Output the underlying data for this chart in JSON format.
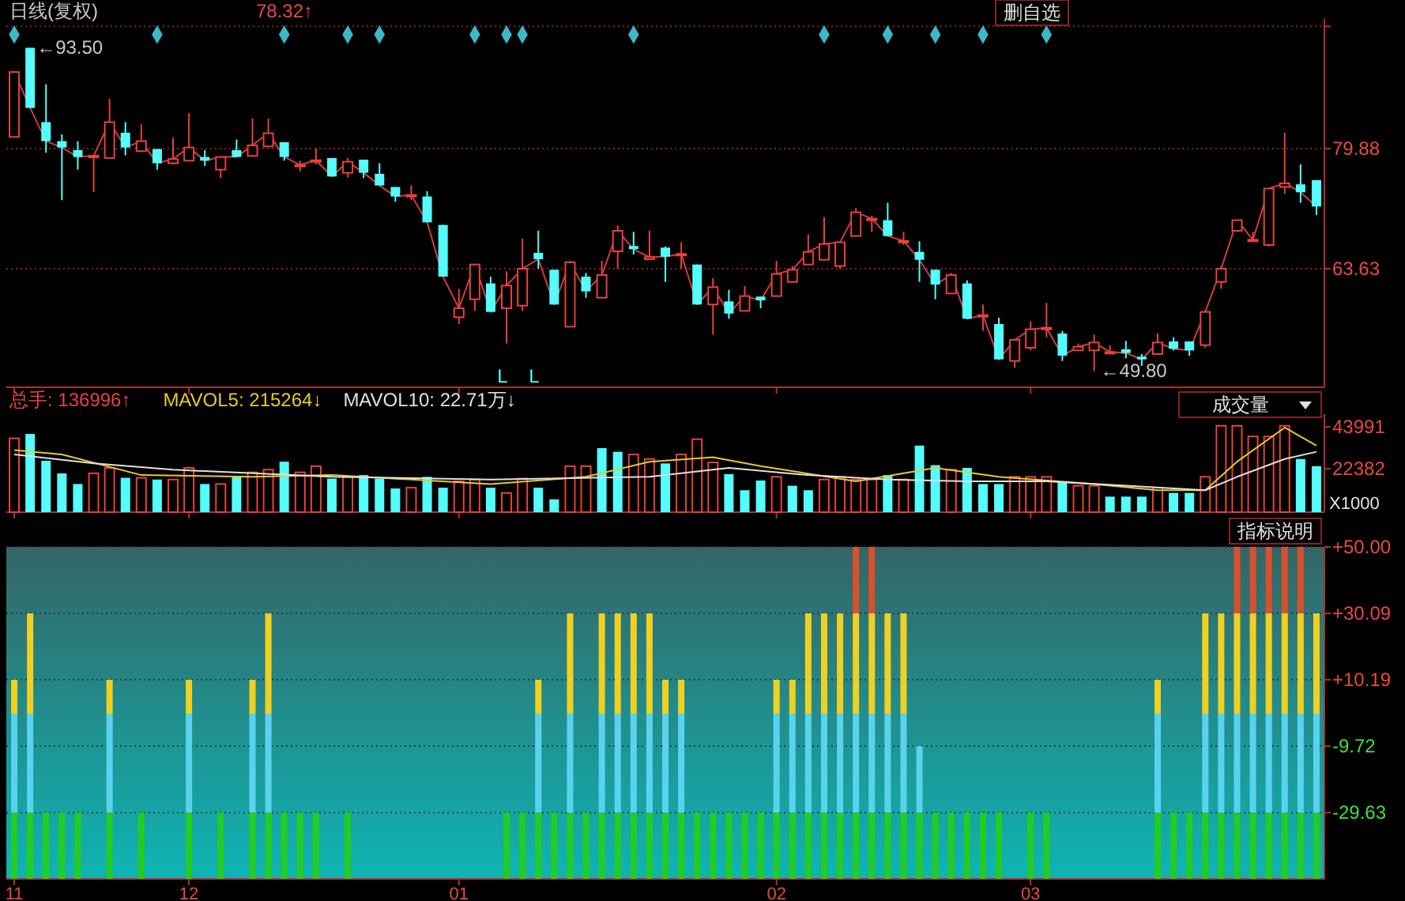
{
  "chart_data": [
    {
      "type": "candlestick",
      "title": "日线(复权)",
      "ylim": [
        47.6,
        97.4
      ],
      "yticks": [
        {
          "value": 96.4,
          "label": null
        },
        79.88,
        63.63
      ],
      "grid": "y",
      "tick_labels": "y",
      "categories": [
        "11",
        null,
        null,
        null,
        null,
        null,
        null,
        null,
        null,
        null,
        null,
        "12",
        null,
        null,
        null,
        null,
        null,
        null,
        null,
        null,
        null,
        null,
        null,
        null,
        null,
        null,
        null,
        null,
        "01",
        null,
        null,
        null,
        null,
        null,
        null,
        null,
        null,
        null,
        null,
        null,
        null,
        null,
        null,
        null,
        null,
        null,
        null,
        null,
        "02",
        null,
        null,
        null,
        null,
        null,
        null,
        null,
        null,
        null,
        null,
        null,
        null,
        null,
        null,
        null,
        "03",
        null,
        null,
        null,
        null,
        null,
        null,
        null,
        null,
        null,
        null,
        null,
        null,
        null,
        null,
        null,
        null,
        null,
        null
      ],
      "ohlc": [
        [
          81.45,
          90.22,
          81.45,
          90.22
        ],
        [
          93.5,
          93.5,
          85.37,
          85.37
        ],
        [
          83.45,
          88.58,
          79.31,
          80.88
        ],
        [
          80.88,
          81.8,
          72.9,
          80.02
        ],
        [
          79.67,
          80.88,
          77.03,
          78.74
        ],
        [
          78.8,
          79.0,
          74.0,
          78.9
        ],
        [
          78.6,
          86.58,
          78.6,
          83.45
        ],
        [
          82.02,
          83.45,
          78.96,
          80.02
        ],
        [
          79.53,
          83.16,
          79.53,
          80.88
        ],
        [
          79.81,
          79.81,
          77.03,
          77.89
        ],
        [
          77.89,
          81.31,
          77.74,
          78.46
        ],
        [
          78.24,
          84.66,
          78.24,
          80.02
        ],
        [
          78.74,
          79.67,
          77.53,
          78.24
        ],
        [
          77.03,
          78.74,
          75.89,
          78.74
        ],
        [
          79.67,
          81.1,
          78.74,
          78.74
        ],
        [
          78.88,
          83.94,
          78.88,
          80.31
        ],
        [
          80.17,
          83.94,
          80.17,
          81.95
        ],
        [
          80.74,
          80.74,
          78.24,
          78.74
        ],
        [
          77.67,
          78.24,
          76.82,
          77.67
        ],
        [
          78.24,
          79.88,
          77.74,
          78.3
        ],
        [
          78.6,
          78.6,
          76.1,
          76.1
        ],
        [
          76.6,
          78.6,
          75.96,
          78.1
        ],
        [
          78.38,
          78.38,
          75.89,
          76.6
        ],
        [
          76.46,
          77.89,
          74.89,
          74.89
        ],
        [
          74.68,
          74.68,
          72.68,
          73.4
        ],
        [
          73.6,
          74.89,
          72.9,
          73.6
        ],
        [
          73.4,
          74.11,
          69.9,
          69.9
        ],
        [
          69.55,
          69.55,
          62.56,
          62.56
        ],
        [
          57.07,
          60.92,
          56.15,
          58.29
        ],
        [
          59.5,
          64.2,
          57.93,
          64.2
        ],
        [
          61.64,
          62.56,
          57.79,
          57.79
        ],
        [
          58.29,
          63.28,
          53.51,
          61.35
        ],
        [
          58.64,
          67.69,
          57.93,
          63.63
        ],
        [
          65.77,
          68.76,
          63.63,
          64.92
        ],
        [
          63.49,
          63.49,
          58.79,
          58.79
        ],
        [
          55.79,
          64.7,
          55.79,
          64.49
        ],
        [
          62.56,
          63.06,
          59.71,
          60.57
        ],
        [
          59.71,
          64.7,
          59.71,
          62.78
        ],
        [
          65.98,
          69.48,
          63.63,
          68.76
        ],
        [
          66.7,
          68.62,
          65.56,
          66.27
        ],
        [
          64.92,
          68.76,
          64.92,
          65.2
        ],
        [
          66.48,
          66.63,
          61.85,
          65.27
        ],
        [
          65.63,
          67.2,
          63.63,
          65.63
        ],
        [
          64.2,
          64.2,
          58.79,
          58.79
        ],
        [
          58.79,
          62.35,
          54.72,
          61.14
        ],
        [
          59.21,
          60.78,
          56.86,
          57.57
        ],
        [
          57.93,
          61.28,
          57.93,
          59.93
        ],
        [
          59.86,
          59.86,
          58.29,
          59.36
        ],
        [
          59.93,
          64.7,
          59.93,
          62.92
        ],
        [
          61.85,
          64.0,
          61.85,
          63.49
        ],
        [
          64.2,
          68.27,
          64.2,
          65.91
        ],
        [
          64.84,
          70.62,
          64.84,
          66.98
        ],
        [
          63.99,
          67.2,
          63.63,
          67.2
        ],
        [
          68.05,
          71.83,
          68.05,
          71.26
        ],
        [
          70.4,
          70.76,
          68.62,
          70.4
        ],
        [
          70.19,
          72.54,
          68.05,
          68.05
        ],
        [
          67.4,
          68.62,
          66.84,
          67.4
        ],
        [
          65.91,
          67.34,
          61.85,
          64.84
        ],
        [
          63.49,
          63.49,
          59.5,
          61.49
        ],
        [
          60.28,
          63.06,
          60.28,
          62.78
        ],
        [
          61.64,
          62.06,
          56.86,
          56.86
        ],
        [
          57.36,
          58.79,
          55.22,
          57.36
        ],
        [
          56.15,
          57.0,
          51.37,
          51.37
        ],
        [
          51.16,
          54.01,
          50.23,
          54.01
        ],
        [
          52.94,
          56.5,
          52.59,
          55.44
        ],
        [
          55.44,
          59.0,
          54.37,
          55.65
        ],
        [
          54.87,
          55.22,
          51.16,
          51.87
        ],
        [
          52.59,
          53.51,
          52.59,
          53.08
        ],
        [
          52.59,
          54.72,
          49.8,
          53.65
        ],
        [
          52.37,
          53.3,
          52.09,
          52.37
        ],
        [
          52.73,
          53.87,
          51.52,
          52.23
        ],
        [
          51.73,
          52.09,
          50.5,
          51.37
        ],
        [
          52.09,
          54.87,
          52.09,
          53.65
        ],
        [
          53.8,
          54.37,
          52.59,
          52.8
        ],
        [
          53.8,
          53.8,
          51.87,
          52.59
        ],
        [
          53.3,
          57.79,
          52.94,
          57.79
        ],
        [
          61.85,
          63.99,
          60.92,
          63.63
        ],
        [
          68.76,
          70.19,
          68.62,
          70.19
        ],
        [
          67.55,
          68.62,
          67.34,
          67.55
        ],
        [
          66.84,
          74.47,
          66.63,
          74.47
        ],
        [
          74.68,
          82.02,
          73.75,
          75.18
        ],
        [
          75.04,
          77.74,
          72.54,
          73.97
        ],
        [
          75.61,
          75.61,
          70.9,
          72.04
        ]
      ],
      "series": [
        {
          "type": "line",
          "color": "#d23c3c",
          "values": [
            90.22,
            85.37,
            80.88,
            80.02,
            78.74,
            78.9,
            83.45,
            80.02,
            80.88,
            77.89,
            78.46,
            80.02,
            78.24,
            78.74,
            78.74,
            80.31,
            81.95,
            78.74,
            77.67,
            78.3,
            76.1,
            78.1,
            76.6,
            74.89,
            73.4,
            73.6,
            69.9,
            62.56,
            58.29,
            64.2,
            57.79,
            61.35,
            63.63,
            64.92,
            58.79,
            64.49,
            60.57,
            62.78,
            68.76,
            66.27,
            65.2,
            65.27,
            65.63,
            58.79,
            61.14,
            57.57,
            59.93,
            59.36,
            62.92,
            63.49,
            65.91,
            66.98,
            67.2,
            71.26,
            70.4,
            68.05,
            67.4,
            64.84,
            61.49,
            62.78,
            56.86,
            57.36,
            51.37,
            54.01,
            55.44,
            55.65,
            51.87,
            53.08,
            53.65,
            52.37,
            52.23,
            51.37,
            53.65,
            52.8,
            52.59,
            57.79,
            63.63,
            70.19,
            67.55,
            74.47,
            75.18,
            73.97,
            72.04
          ]
        },
        {
          "type": "scatter",
          "marker": "diamond",
          "color": "#3cb8c8",
          "values": [
            95.3,
            null,
            null,
            null,
            null,
            null,
            null,
            null,
            null,
            95.3,
            null,
            null,
            null,
            null,
            null,
            null,
            null,
            95.3,
            null,
            null,
            null,
            95.3,
            null,
            95.3,
            null,
            null,
            null,
            null,
            null,
            95.3,
            null,
            95.3,
            95.3,
            null,
            null,
            null,
            null,
            null,
            null,
            95.3,
            null,
            null,
            null,
            null,
            null,
            null,
            null,
            null,
            null,
            null,
            null,
            95.3,
            null,
            null,
            null,
            95.3,
            null,
            null,
            95.3,
            null,
            null,
            95.3,
            null,
            null,
            null,
            95.3,
            null,
            null,
            null,
            null,
            null,
            null,
            null,
            null,
            null,
            null,
            null,
            null,
            null,
            null,
            null,
            null,
            null
          ]
        }
      ],
      "annotations": [
        "78.32↑",
        "删自选",
        "←93.50",
        "←49.80",
        "L",
        "L"
      ]
    },
    {
      "type": "bar",
      "ylim": [
        0,
        50500
      ],
      "yticks": [
        22382,
        43991
      ],
      "ylabel": "X1000",
      "tick_labels": "y",
      "legend": "top left",
      "categories": [
        "11",
        null,
        null,
        null,
        null,
        null,
        null,
        null,
        null,
        null,
        null,
        "12",
        null,
        null,
        null,
        null,
        null,
        null,
        null,
        null,
        null,
        null,
        null,
        null,
        null,
        null,
        null,
        null,
        "01",
        null,
        null,
        null,
        null,
        null,
        null,
        null,
        null,
        null,
        null,
        null,
        null,
        null,
        null,
        null,
        null,
        null,
        null,
        null,
        "02",
        null,
        null,
        null,
        null,
        null,
        null,
        null,
        null,
        null,
        null,
        null,
        null,
        null,
        null,
        null,
        "03",
        null,
        null,
        null,
        null,
        null,
        null,
        null,
        null,
        null,
        null,
        null,
        null,
        null,
        null,
        null,
        null,
        null,
        null
      ],
      "series": [
        {
          "type": "bar",
          "name": "总手: 136996↑",
          "color": "#e8413c",
          "values": [
            38000,
            40300,
            26500,
            20000,
            14500,
            20000,
            22800,
            17700,
            17700,
            16800,
            16800,
            22800,
            14500,
            14500,
            18200,
            20500,
            21900,
            26000,
            20500,
            23700,
            17300,
            18200,
            19100,
            17300,
            12200,
            12600,
            18200,
            12600,
            15900,
            16800,
            12600,
            9900,
            17300,
            12600,
            6600,
            23700,
            23700,
            33000,
            31100,
            29700,
            27400,
            25100,
            29700,
            37600,
            25600,
            19600,
            11300,
            16300,
            18200,
            13600,
            11300,
            16800,
            18200,
            16800,
            16800,
            19100,
            16800,
            34300,
            24200,
            21900,
            22800,
            14500,
            14500,
            18200,
            18200,
            18200,
            15900,
            13600,
            13600,
            8000,
            8000,
            8000,
            12600,
            9900,
            9900,
            18200,
            44500,
            44500,
            39000,
            39000,
            44500,
            27400,
            23700
          ],
          "colors": [
            "#e8413c",
            "#54fcfc",
            "#54fcfc",
            "#54fcfc",
            "#54fcfc",
            "#e8413c",
            "#e8413c",
            "#54fcfc",
            "#e8413c",
            "#54fcfc",
            "#e8413c",
            "#e8413c",
            "#54fcfc",
            "#e8413c",
            "#54fcfc",
            "#e8413c",
            "#e8413c",
            "#54fcfc",
            "#e8413c",
            "#e8413c",
            "#54fcfc",
            "#e8413c",
            "#54fcfc",
            "#54fcfc",
            "#54fcfc",
            "#e8413c",
            "#54fcfc",
            "#54fcfc",
            "#e8413c",
            "#e8413c",
            "#54fcfc",
            "#e8413c",
            "#e8413c",
            "#54fcfc",
            "#54fcfc",
            "#e8413c",
            "#e8413c",
            "#54fcfc",
            "#54fcfc",
            "#e8413c",
            "#e8413c",
            "#54fcfc",
            "#e8413c",
            "#e8413c",
            "#e8413c",
            "#54fcfc",
            "#54fcfc",
            "#54fcfc",
            "#e8413c",
            "#54fcfc",
            "#54fcfc",
            "#e8413c",
            "#e8413c",
            "#e8413c",
            "#e8413c",
            "#54fcfc",
            "#e8413c",
            "#54fcfc",
            "#54fcfc",
            "#e8413c",
            "#54fcfc",
            "#54fcfc",
            "#54fcfc",
            "#e8413c",
            "#e8413c",
            "#e8413c",
            "#54fcfc",
            "#e8413c",
            "#e8413c",
            "#54fcfc",
            "#54fcfc",
            "#54fcfc",
            "#e8413c",
            "#54fcfc",
            "#54fcfc",
            "#e8413c",
            "#e8413c",
            "#e8413c",
            "#e8413c",
            "#e8413c",
            "#e8413c",
            "#54fcfc",
            "#54fcfc"
          ]
        },
        {
          "type": "line",
          "name": "MAVOL5: 215264↓",
          "color": "#e8c830",
          "values": [
            32000,
            null,
            null,
            29700,
            null,
            null,
            null,
            null,
            19100,
            null,
            null,
            null,
            null,
            null,
            null,
            18200,
            null,
            null,
            null,
            null,
            19100,
            null,
            null,
            null,
            null,
            null,
            null,
            null,
            null,
            null,
            14500,
            null,
            null,
            null,
            null,
            null,
            18200,
            null,
            null,
            null,
            26000,
            null,
            null,
            null,
            28300,
            null,
            null,
            23700,
            null,
            null,
            null,
            null,
            null,
            15900,
            null,
            null,
            null,
            null,
            22800,
            null,
            null,
            null,
            18200,
            null,
            null,
            null,
            null,
            null,
            14500,
            null,
            null,
            null,
            11300,
            null,
            null,
            11300,
            null,
            26000,
            null,
            null,
            43600,
            null,
            34300
          ]
        },
        {
          "type": "line",
          "name": "MAVOL10: 22.71万↓",
          "color": "#e0e0e0",
          "values": [
            29700,
            null,
            null,
            null,
            null,
            25100,
            null,
            null,
            null,
            null,
            21900,
            null,
            null,
            null,
            null,
            null,
            null,
            null,
            null,
            null,
            18200,
            null,
            null,
            null,
            null,
            null,
            null,
            null,
            null,
            null,
            16800,
            null,
            null,
            null,
            null,
            null,
            null,
            null,
            null,
            null,
            18200,
            null,
            null,
            null,
            null,
            22800,
            null,
            null,
            null,
            null,
            19100,
            null,
            null,
            null,
            null,
            16800,
            null,
            null,
            null,
            null,
            15900,
            null,
            null,
            null,
            null,
            15900,
            null,
            null,
            null,
            null,
            13600,
            null,
            null,
            null,
            null,
            11300,
            null,
            18200,
            null,
            null,
            27400,
            null,
            31100
          ]
        }
      ],
      "annotations": [
        "成交量"
      ]
    },
    {
      "type": "bar",
      "ylim": [
        -49.5,
        50
      ],
      "grid": "y",
      "yticks": [
        {
          "value": 50,
          "label": "+50.00"
        },
        {
          "value": 30.09,
          "label": "+30.09"
        },
        {
          "value": 10.19,
          "label": "+10.19"
        },
        {
          "value": -9.72,
          "label": "-9.72"
        },
        {
          "value": -29.63,
          "label": "-29.63"
        }
      ],
      "categories": [
        "11",
        null,
        null,
        null,
        null,
        null,
        null,
        null,
        null,
        null,
        null,
        "12",
        null,
        null,
        null,
        null,
        null,
        null,
        null,
        null,
        null,
        null,
        null,
        null,
        null,
        null,
        null,
        null,
        "01",
        null,
        null,
        null,
        null,
        null,
        null,
        null,
        null,
        null,
        null,
        null,
        null,
        null,
        null,
        null,
        null,
        null,
        null,
        null,
        "02",
        null,
        null,
        null,
        null,
        null,
        null,
        null,
        null,
        null,
        null,
        null,
        null,
        null,
        null,
        null,
        "03",
        null,
        null,
        null,
        null,
        null,
        null,
        null,
        null,
        null,
        null,
        null,
        null,
        null,
        null,
        null,
        null,
        null,
        null
      ],
      "series": [
        {
          "color": "#22cc22",
          "values": [
            19.87,
            19.87,
            19.87,
            19.87,
            19.87,
            null,
            19.87,
            null,
            19.87,
            null,
            null,
            19.87,
            null,
            19.87,
            null,
            19.87,
            19.87,
            19.87,
            19.87,
            19.87,
            null,
            19.87,
            null,
            null,
            null,
            null,
            null,
            null,
            null,
            null,
            null,
            19.87,
            19.87,
            19.87,
            19.87,
            19.87,
            19.87,
            19.87,
            19.87,
            19.87,
            19.87,
            19.87,
            19.87,
            19.87,
            19.87,
            19.87,
            19.87,
            19.87,
            19.87,
            19.87,
            19.87,
            19.87,
            19.87,
            19.87,
            19.87,
            19.87,
            19.87,
            19.87,
            19.87,
            19.87,
            19.87,
            19.87,
            19.87,
            null,
            19.87,
            19.87,
            null,
            null,
            null,
            null,
            null,
            null,
            19.87,
            19.87,
            19.87,
            19.87,
            19.87,
            19.87,
            19.87,
            19.87,
            19.87,
            19.87,
            19.87
          ],
          "base": [
            -49.5,
            -49.5,
            -49.5,
            -49.5,
            -49.5,
            null,
            -49.5,
            null,
            -49.5,
            null,
            null,
            -49.5,
            null,
            -49.5,
            null,
            -49.5,
            -49.5,
            -49.5,
            -49.5,
            -49.5,
            null,
            -49.5,
            null,
            null,
            null,
            null,
            null,
            null,
            null,
            null,
            null,
            -49.5,
            -49.5,
            -49.5,
            -49.5,
            -49.5,
            -49.5,
            -49.5,
            -49.5,
            -49.5,
            -49.5,
            -49.5,
            -49.5,
            -49.5,
            -49.5,
            -49.5,
            -49.5,
            -49.5,
            -49.5,
            -49.5,
            -49.5,
            -49.5,
            -49.5,
            -49.5,
            -49.5,
            -49.5,
            -49.5,
            -49.5,
            -49.5,
            -49.5,
            -49.5,
            -49.5,
            -49.5,
            null,
            -49.5,
            -49.5,
            null,
            null,
            null,
            null,
            null,
            null,
            -49.5,
            -49.5,
            -49.5,
            -49.5,
            -49.5,
            -49.5,
            -49.5,
            -49.5,
            -49.5,
            -49.5,
            -49.5
          ]
        },
        {
          "color": "#5ad2ee",
          "values": [
            29.63,
            29.63,
            null,
            null,
            null,
            null,
            29.63,
            null,
            null,
            null,
            null,
            29.63,
            null,
            null,
            null,
            29.63,
            29.63,
            null,
            null,
            null,
            null,
            null,
            null,
            null,
            null,
            null,
            null,
            null,
            null,
            null,
            null,
            null,
            null,
            29.63,
            null,
            29.63,
            null,
            29.63,
            29.63,
            29.63,
            29.63,
            29.63,
            29.63,
            null,
            null,
            null,
            null,
            null,
            29.63,
            29.63,
            29.63,
            29.63,
            29.63,
            29.63,
            29.63,
            29.63,
            29.63,
            19.91,
            null,
            null,
            null,
            null,
            null,
            null,
            null,
            null,
            null,
            null,
            null,
            null,
            null,
            null,
            29.63,
            null,
            null,
            29.63,
            29.63,
            29.63,
            29.63,
            29.63,
            29.63,
            29.63,
            29.63
          ],
          "base": [
            -29.63,
            -29.63,
            null,
            null,
            null,
            null,
            -29.63,
            null,
            null,
            null,
            null,
            -29.63,
            null,
            null,
            null,
            -29.63,
            -29.63,
            null,
            null,
            null,
            null,
            null,
            null,
            null,
            null,
            null,
            null,
            null,
            null,
            null,
            null,
            null,
            null,
            -29.63,
            null,
            -29.63,
            null,
            -29.63,
            -29.63,
            -29.63,
            -29.63,
            -29.63,
            -29.63,
            null,
            null,
            null,
            null,
            null,
            -29.63,
            -29.63,
            -29.63,
            -29.63,
            -29.63,
            -29.63,
            -29.63,
            -29.63,
            -29.63,
            -29.63,
            null,
            null,
            null,
            null,
            null,
            null,
            null,
            null,
            null,
            null,
            null,
            null,
            null,
            null,
            -29.63,
            null,
            null,
            -29.63,
            -29.63,
            -29.63,
            -29.63,
            -29.63,
            -29.63,
            -29.63,
            -29.63
          ]
        },
        {
          "color": "#f0d020",
          "values": [
            10.19,
            30.09,
            null,
            null,
            null,
            null,
            10.19,
            null,
            null,
            null,
            null,
            10.19,
            null,
            null,
            null,
            10.19,
            30.09,
            null,
            null,
            null,
            null,
            null,
            null,
            null,
            null,
            null,
            null,
            null,
            null,
            null,
            null,
            null,
            null,
            10.19,
            null,
            30.09,
            null,
            30.09,
            30.09,
            30.09,
            30.09,
            10.19,
            10.19,
            null,
            null,
            null,
            null,
            null,
            10.19,
            10.19,
            30.09,
            30.09,
            30.09,
            30.09,
            30.09,
            30.09,
            30.09,
            null,
            null,
            null,
            null,
            null,
            null,
            null,
            null,
            null,
            null,
            null,
            null,
            null,
            null,
            null,
            10.19,
            null,
            null,
            30.09,
            30.09,
            30.09,
            30.09,
            30.09,
            30.09,
            30.09,
            30.09
          ],
          "base": [
            0,
            0,
            null,
            null,
            null,
            null,
            0,
            null,
            null,
            null,
            null,
            0,
            null,
            null,
            null,
            0,
            0,
            null,
            null,
            null,
            null,
            null,
            null,
            null,
            null,
            null,
            null,
            null,
            null,
            null,
            null,
            null,
            null,
            0,
            null,
            0,
            null,
            0,
            0,
            0,
            0,
            0,
            0,
            null,
            null,
            null,
            null,
            null,
            0,
            0,
            0,
            0,
            0,
            0,
            0,
            0,
            0,
            null,
            null,
            null,
            null,
            null,
            null,
            null,
            null,
            null,
            null,
            null,
            null,
            null,
            null,
            null,
            0,
            null,
            null,
            0,
            0,
            0,
            0,
            0,
            0,
            0,
            0
          ]
        },
        {
          "color": "#d8502c",
          "values": [
            null,
            null,
            null,
            null,
            null,
            null,
            null,
            null,
            null,
            null,
            null,
            null,
            null,
            null,
            null,
            null,
            null,
            null,
            null,
            null,
            null,
            null,
            null,
            null,
            null,
            null,
            null,
            null,
            null,
            null,
            null,
            null,
            null,
            null,
            null,
            null,
            null,
            null,
            null,
            null,
            null,
            null,
            null,
            null,
            null,
            null,
            null,
            null,
            null,
            null,
            null,
            null,
            null,
            19.91,
            19.91,
            null,
            null,
            null,
            null,
            null,
            null,
            null,
            null,
            null,
            null,
            null,
            null,
            null,
            null,
            null,
            null,
            null,
            null,
            null,
            null,
            null,
            null,
            19.91,
            19.91,
            19.91,
            19.91,
            19.91,
            null
          ],
          "base": [
            null,
            null,
            null,
            null,
            null,
            null,
            null,
            null,
            null,
            null,
            null,
            null,
            null,
            null,
            null,
            null,
            null,
            null,
            null,
            null,
            null,
            null,
            null,
            null,
            null,
            null,
            null,
            null,
            null,
            null,
            null,
            null,
            null,
            null,
            null,
            null,
            null,
            null,
            null,
            null,
            null,
            null,
            null,
            null,
            null,
            null,
            null,
            null,
            null,
            null,
            null,
            null,
            null,
            30.09,
            30.09,
            null,
            null,
            null,
            null,
            null,
            null,
            null,
            null,
            null,
            null,
            null,
            null,
            null,
            null,
            null,
            null,
            null,
            null,
            null,
            null,
            null,
            null,
            30.09,
            30.09,
            30.09,
            30.09,
            30.09,
            null
          ]
        }
      ],
      "annotations": [
        "指标说明"
      ]
    }
  ]
}
